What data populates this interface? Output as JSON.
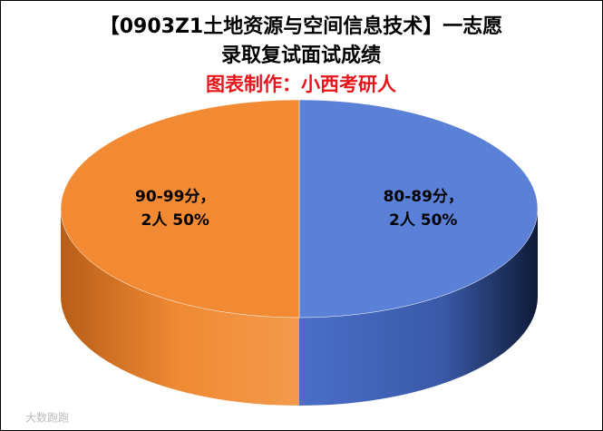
{
  "chart_data": {
    "type": "pie3d",
    "title": [
      "【0903Z1土地资源与空间信息技术】一志愿",
      "录取复试面试成绩"
    ],
    "subtitle": "图表制作：小西考研人",
    "categories": [
      "80-89分，",
      "90-99分，"
    ],
    "values": [
      2,
      2
    ],
    "value_labels": [
      "2人 50%",
      "2人 50%"
    ],
    "colors": [
      "#5b80d8",
      "#f28a33"
    ],
    "watermark": "大数跑跑"
  }
}
